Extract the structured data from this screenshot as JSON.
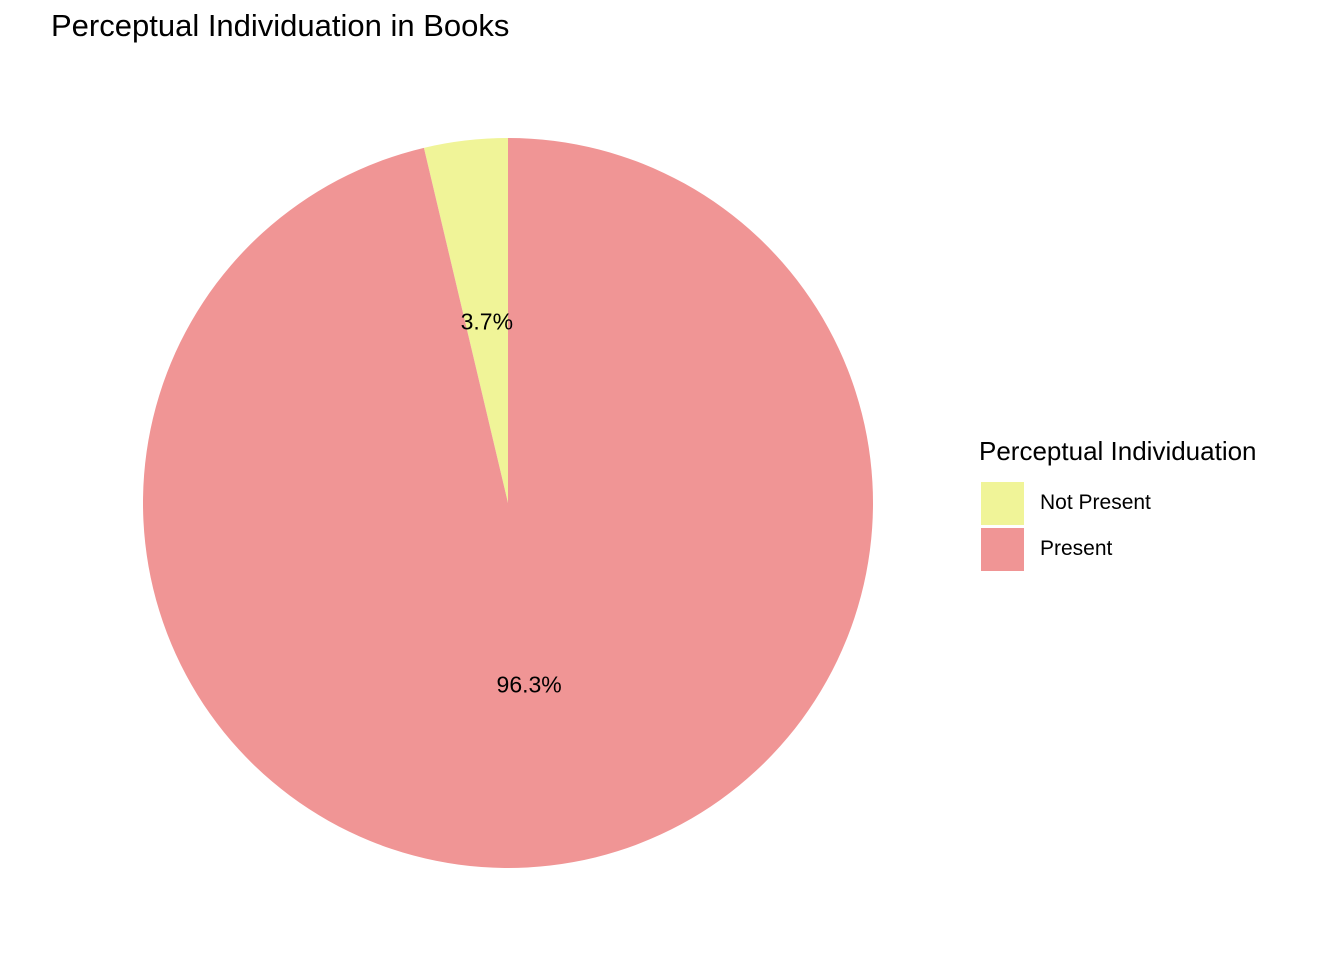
{
  "chart_data": {
    "type": "pie",
    "title": "Perceptual Individuation in Books",
    "legend_title": "Perceptual Individuation",
    "legend_position": "right",
    "slices": [
      {
        "name": "Not Present",
        "value": 3.7,
        "label": "3.7%",
        "color": "#f0f498"
      },
      {
        "name": "Present",
        "value": 96.3,
        "label": "96.3%",
        "color": "#f09595"
      }
    ]
  }
}
